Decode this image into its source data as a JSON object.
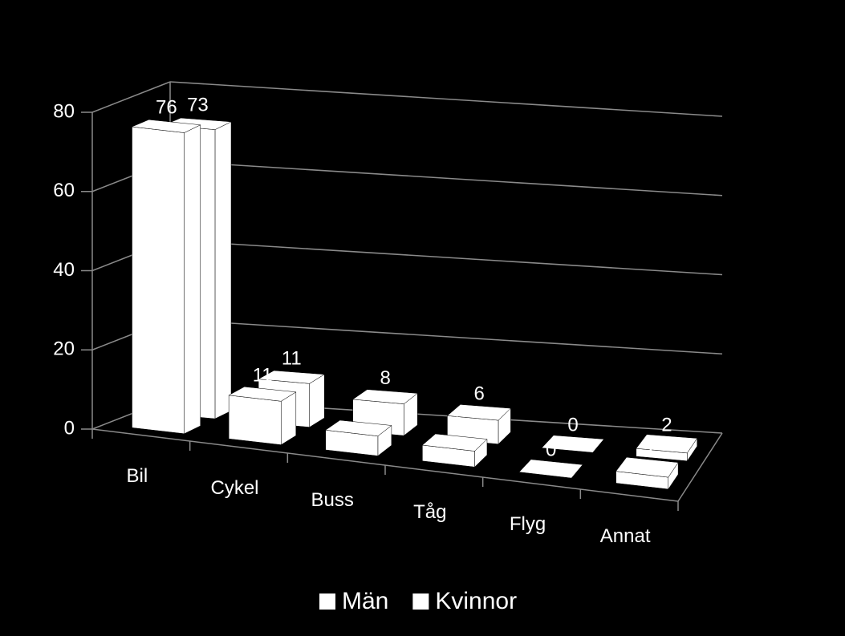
{
  "chart_data": {
    "type": "bar3d",
    "categories": [
      "Bil",
      "Cykel",
      "Buss",
      "Tåg",
      "Flyg",
      "Annat"
    ],
    "series": [
      {
        "name": "Män",
        "color": "#ffffff",
        "values": [
          76,
          11,
          5,
          4,
          0,
          3
        ]
      },
      {
        "name": "Kvinnor",
        "color": "#ffffff",
        "values": [
          73,
          11,
          8,
          6,
          0,
          2
        ]
      }
    ],
    "ylim": [
      0,
      80
    ],
    "yticks": [
      0,
      20,
      40,
      60,
      80
    ],
    "grid": true,
    "legend": "bottom"
  }
}
